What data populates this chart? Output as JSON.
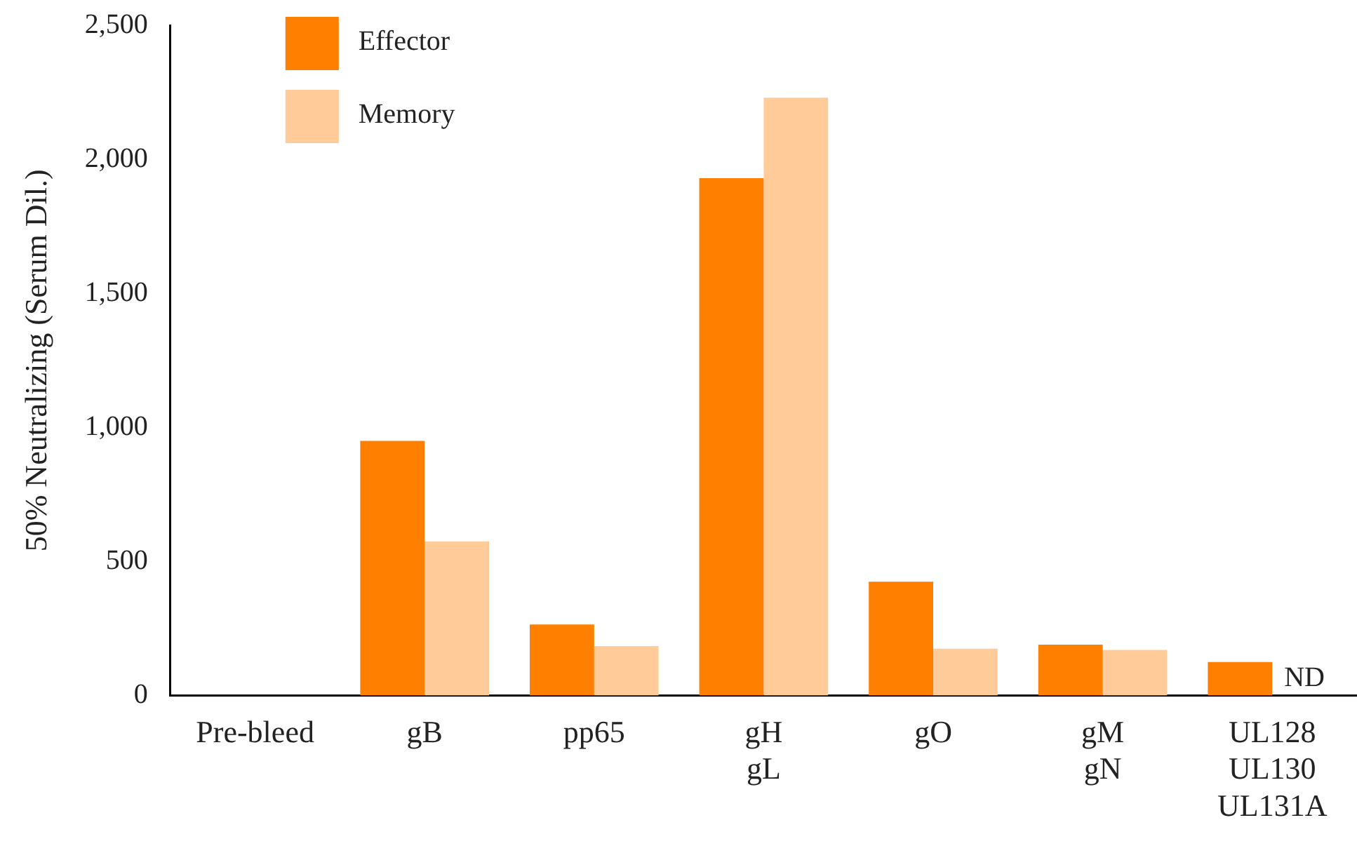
{
  "chart_data": {
    "type": "bar",
    "ylabel": "50% Neutralizing (Serum Dil.)",
    "categories": [
      "Pre-bleed",
      "gB",
      "pp65",
      "gH\ngL",
      "gO",
      "gM\ngN",
      "UL128\nUL130\nUL131A"
    ],
    "series": [
      {
        "name": "Effector",
        "color": "#ff7f00",
        "values": [
          0,
          950,
          265,
          1930,
          425,
          190,
          125
        ]
      },
      {
        "name": "Memory",
        "color": "#ffcc99",
        "values": [
          0,
          575,
          185,
          2230,
          175,
          170,
          null
        ]
      }
    ],
    "ylim": [
      0,
      2500
    ],
    "yticks": [
      {
        "value": 0,
        "label": "0"
      },
      {
        "value": 500,
        "label": "500"
      },
      {
        "value": 1000,
        "label": "1,000"
      },
      {
        "value": 1500,
        "label": "1,500"
      },
      {
        "value": 2000,
        "label": "2,000"
      },
      {
        "value": 2500,
        "label": "2,500"
      }
    ],
    "grid": false,
    "legend": "top left",
    "annotations": [
      {
        "text": "ND",
        "x": "UL128\nUL130\nUL131A",
        "y": 0
      }
    ]
  }
}
